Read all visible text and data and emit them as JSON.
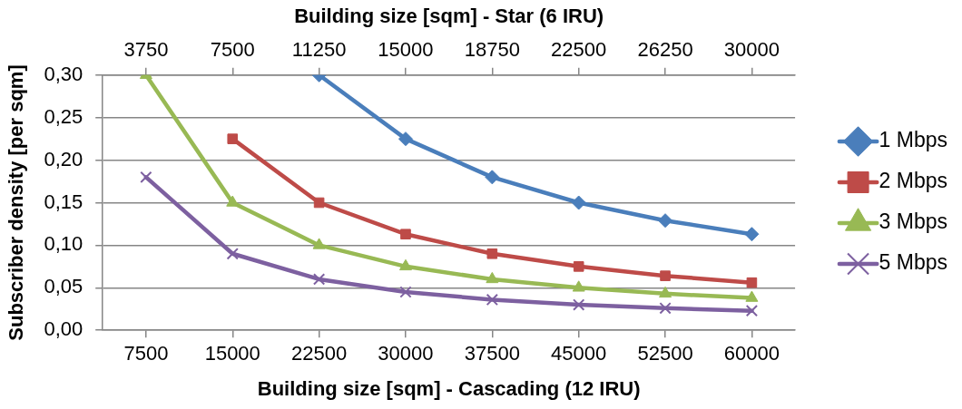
{
  "chart_data": {
    "type": "line",
    "xlabel": "Building size [sqm] - Cascading (12 IRU)",
    "x2label": "Building size [sqm] - Star (6 IRU)",
    "ylabel": "Subscriber density [per sqm]",
    "x": [
      7500,
      15000,
      22500,
      30000,
      37500,
      45000,
      52500,
      60000
    ],
    "xlim": [
      3750,
      63750
    ],
    "xticks": [
      7500,
      15000,
      22500,
      30000,
      37500,
      45000,
      52500,
      60000
    ],
    "x2lim": [
      1875,
      31875
    ],
    "x2ticks": [
      3750,
      7500,
      11250,
      15000,
      18750,
      22500,
      26250,
      30000
    ],
    "ylim": [
      0,
      0.3
    ],
    "yticks": [
      {
        "value": 0,
        "label": "0,00"
      },
      {
        "value": 0.05,
        "label": "0,05"
      },
      {
        "value": 0.1,
        "label": "0,10"
      },
      {
        "value": 0.15,
        "label": "0,15"
      },
      {
        "value": 0.2,
        "label": "0,20"
      },
      {
        "value": 0.25,
        "label": "0,25"
      },
      {
        "value": 0.3,
        "label": "0,30"
      }
    ],
    "grid": "y",
    "legend": "right",
    "series": [
      {
        "name": "1 Mbps",
        "color": "#4a7ebb",
        "marker": "diamond",
        "values": [
          null,
          null,
          0.3,
          0.225,
          0.18,
          0.15,
          0.129,
          0.113
        ]
      },
      {
        "name": "2 Mbps",
        "color": "#be4b48",
        "marker": "square",
        "values": [
          null,
          0.225,
          0.15,
          0.113,
          0.09,
          0.075,
          0.064,
          0.056
        ]
      },
      {
        "name": "3 Mbps",
        "color": "#98b954",
        "marker": "triangle",
        "values": [
          0.3,
          0.15,
          0.1,
          0.075,
          0.06,
          0.05,
          0.043,
          0.038
        ]
      },
      {
        "name": "5 Mbps",
        "color": "#7d60a0",
        "marker": "cross",
        "values": [
          0.18,
          0.09,
          0.06,
          0.045,
          0.036,
          0.03,
          0.026,
          0.023
        ]
      }
    ]
  }
}
